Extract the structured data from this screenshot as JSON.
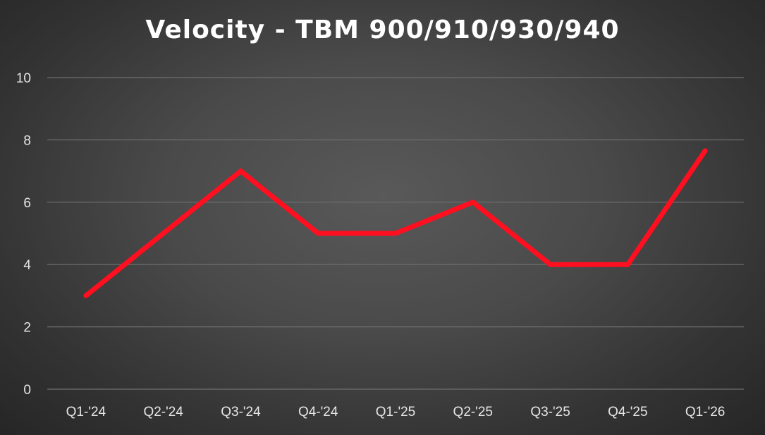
{
  "chart_data": {
    "type": "line",
    "title": "Velocity - TBM 900/910/930/940",
    "xlabel": "",
    "ylabel": "",
    "categories": [
      "Q1-'24",
      "Q2-'24",
      "Q3-'24",
      "Q4-'24",
      "Q1-'25",
      "Q2-'25",
      "Q3-'25",
      "Q4-'25",
      "Q1-'26"
    ],
    "series": [
      {
        "values": [
          3,
          5,
          7,
          5,
          5,
          6,
          4,
          4,
          7.65
        ],
        "color": "#ff0f1f"
      }
    ],
    "ylim": [
      0,
      10
    ],
    "yticks": [
      0,
      2,
      4,
      6,
      8,
      10
    ],
    "grid": true,
    "legend": "none"
  },
  "colors": {
    "background": "#474747",
    "gridline": "#6f6f6f",
    "text": "#ffffff"
  }
}
